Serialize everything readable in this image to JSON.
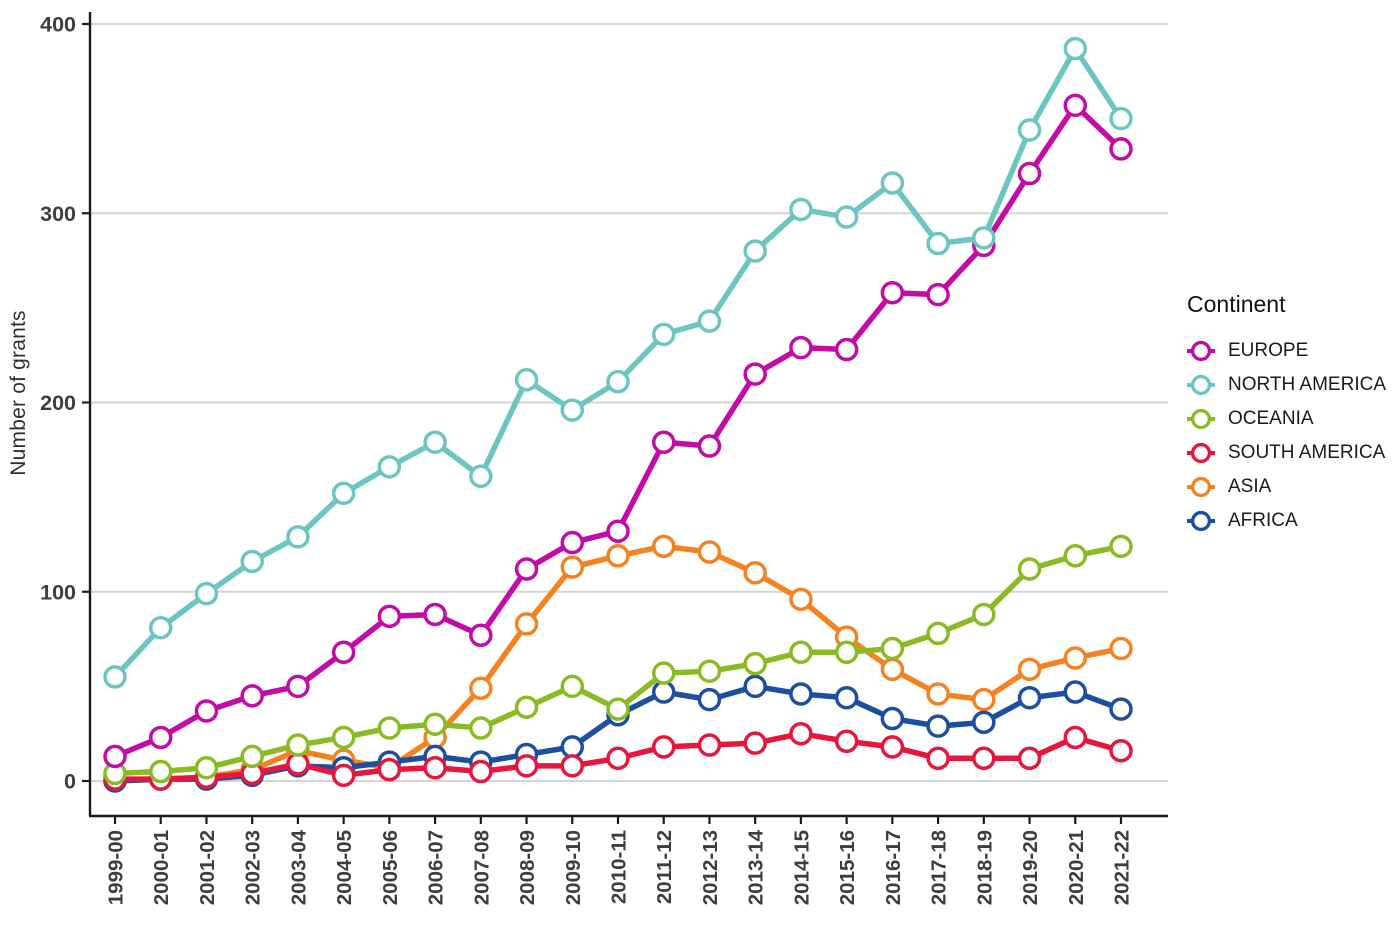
{
  "figure": {
    "background": "#ffffff"
  },
  "axes": {
    "y_title": "Number of grants",
    "y_ticks": [
      0,
      100,
      200,
      300,
      400
    ],
    "tick_label_color": "#3d3d3d",
    "grid_color": "#d4d4d4",
    "axis_color": "#1a1a1a"
  },
  "legend": {
    "title": "Continent",
    "items": [
      {
        "label": "EUROPE",
        "color": "#c30ba8"
      },
      {
        "label": "NORTH AMERICA",
        "color": "#6cc5c0"
      },
      {
        "label": "OCEANIA",
        "color": "#8abb25"
      },
      {
        "label": "SOUTH AMERICA",
        "color": "#e5173f"
      },
      {
        "label": "ASIA",
        "color": "#f58220"
      },
      {
        "label": "AFRICA",
        "color": "#1c4f9f"
      }
    ]
  },
  "chart_data": {
    "type": "line",
    "title": "",
    "xlabel": "",
    "ylabel": "Number of grants",
    "ylim": [
      0,
      400
    ],
    "grid": "horizontal-only",
    "legend_position": "right",
    "marker": "open-circle",
    "categories": [
      "1999-00",
      "2000-01",
      "2001-02",
      "2002-03",
      "2003-04",
      "2004-05",
      "2005-06",
      "2006-07",
      "2007-08",
      "2008-09",
      "2009-10",
      "2010-11",
      "2011-12",
      "2012-13",
      "2013-14",
      "2014-15",
      "2015-16",
      "2016-17",
      "2017-18",
      "2018-19",
      "2019-20",
      "2020-21",
      "2021-22"
    ],
    "series": [
      {
        "name": "EUROPE",
        "color": "#c30ba8",
        "values": [
          13,
          23,
          37,
          45,
          50,
          68,
          87,
          88,
          77,
          112,
          126,
          132,
          179,
          177,
          215,
          229,
          228,
          258,
          257,
          283,
          321,
          357,
          334
        ]
      },
      {
        "name": "NORTH AMERICA",
        "color": "#6cc5c0",
        "values": [
          55,
          81,
          99,
          116,
          129,
          152,
          166,
          179,
          161,
          212,
          196,
          211,
          236,
          243,
          280,
          302,
          298,
          316,
          284,
          287,
          344,
          387,
          350
        ]
      },
      {
        "name": "OCEANIA",
        "color": "#8abb25",
        "values": [
          4,
          5,
          7,
          13,
          19,
          23,
          28,
          30,
          28,
          39,
          50,
          38,
          57,
          58,
          62,
          68,
          68,
          70,
          78,
          88,
          112,
          119,
          124
        ]
      },
      {
        "name": "SOUTH AMERICA",
        "color": "#e5173f",
        "values": [
          1,
          1,
          2,
          4,
          9,
          3,
          6,
          7,
          5,
          8,
          8,
          12,
          18,
          19,
          20,
          25,
          21,
          18,
          12,
          12,
          12,
          23,
          16
        ]
      },
      {
        "name": "ASIA",
        "color": "#f58220",
        "values": [
          0,
          1,
          2,
          6,
          16,
          11,
          7,
          23,
          49,
          83,
          113,
          119,
          124,
          121,
          110,
          96,
          76,
          59,
          46,
          43,
          59,
          65,
          70
        ]
      },
      {
        "name": "AFRICA",
        "color": "#1c4f9f",
        "values": [
          0,
          1,
          1,
          3,
          8,
          7,
          10,
          13,
          10,
          14,
          18,
          35,
          47,
          43,
          50,
          46,
          44,
          33,
          29,
          31,
          44,
          47,
          38
        ]
      }
    ]
  }
}
